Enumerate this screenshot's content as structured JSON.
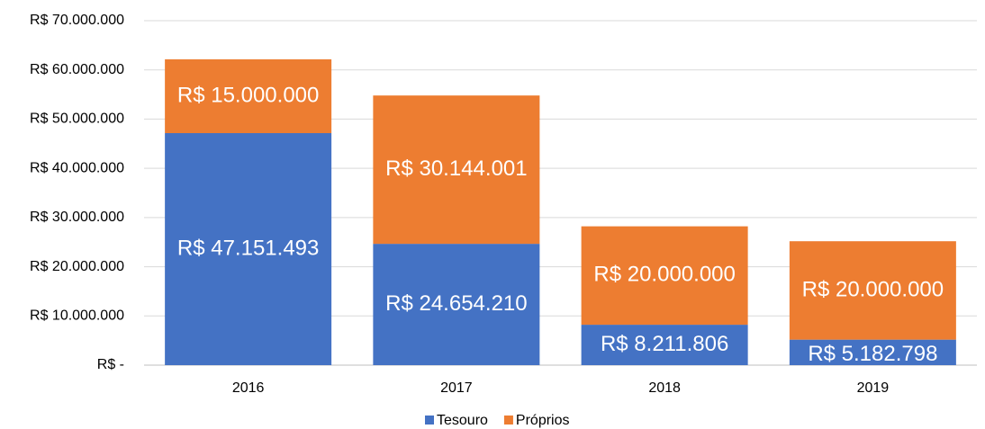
{
  "chart_data": {
    "type": "stacked_bar",
    "categories": [
      "2016",
      "2017",
      "2018",
      "2019"
    ],
    "series": [
      {
        "name": "Tesouro",
        "color": "#4472c4",
        "values": [
          47151493,
          24654210,
          8211806,
          5182798
        ],
        "value_labels": [
          "R$ 47.151.493",
          "R$ 24.654.210",
          "R$ 8.211.806",
          "R$ 5.182.798"
        ]
      },
      {
        "name": "Próprios",
        "color": "#ed7d31",
        "values": [
          15000000,
          30144001,
          20000000,
          20000000
        ],
        "value_labels": [
          "R$ 15.000.000",
          "R$ 30.144.001",
          "R$ 20.000.000",
          "R$ 20.000.000"
        ]
      }
    ],
    "ylim": [
      0,
      70000000
    ],
    "yticks": [
      {
        "value": 0,
        "label": "R$ -"
      },
      {
        "value": 10000000,
        "label": "R$ 10.000.000"
      },
      {
        "value": 20000000,
        "label": "R$ 20.000.000"
      },
      {
        "value": 30000000,
        "label": "R$ 30.000.000"
      },
      {
        "value": 40000000,
        "label": "R$ 40.000.000"
      },
      {
        "value": 50000000,
        "label": "R$ 50.000.000"
      },
      {
        "value": 60000000,
        "label": "R$ 60.000.000"
      },
      {
        "value": 70000000,
        "label": "R$ 70.000.000"
      }
    ],
    "grid": true,
    "legend": "bottom"
  }
}
